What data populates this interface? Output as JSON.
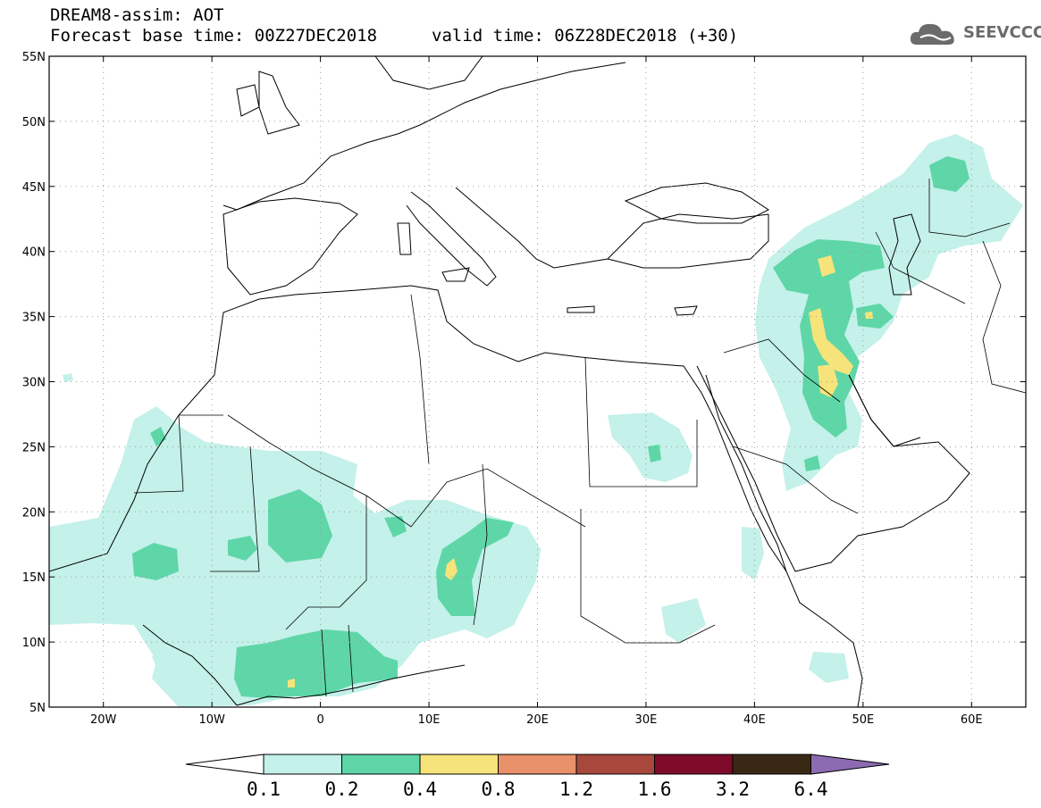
{
  "header": {
    "title": "DREAM8-assim: AOT",
    "base_time": "Forecast base time: 00Z27DEC2018",
    "valid_time": "valid time: 06Z28DEC2018 (+30)"
  },
  "logo": {
    "text": "SEEVCCC",
    "icon": "cloud-icon",
    "color": "#6b6b6b"
  },
  "map": {
    "lon_range": [
      -25,
      65
    ],
    "lat_range": [
      5,
      55
    ],
    "lon_ticks": [
      {
        "value": -20,
        "label": "20W"
      },
      {
        "value": -10,
        "label": "10W"
      },
      {
        "value": 0,
        "label": "0"
      },
      {
        "value": 10,
        "label": "10E"
      },
      {
        "value": 20,
        "label": "20E"
      },
      {
        "value": 30,
        "label": "30E"
      },
      {
        "value": 40,
        "label": "40E"
      },
      {
        "value": 50,
        "label": "50E"
      },
      {
        "value": 60,
        "label": "60E"
      }
    ],
    "lat_ticks": [
      {
        "value": 55,
        "label": "55N"
      },
      {
        "value": 50,
        "label": "50N"
      },
      {
        "value": 45,
        "label": "45N"
      },
      {
        "value": 40,
        "label": "40N"
      },
      {
        "value": 35,
        "label": "35N"
      },
      {
        "value": 30,
        "label": "30N"
      },
      {
        "value": 25,
        "label": "25N"
      },
      {
        "value": 20,
        "label": "20N"
      },
      {
        "value": 15,
        "label": "15N"
      },
      {
        "value": 10,
        "label": "10N"
      },
      {
        "value": 5,
        "label": "5N"
      }
    ]
  },
  "colorbar": {
    "labels": [
      "0.1",
      "0.2",
      "0.4",
      "0.8",
      "1.2",
      "1.6",
      "3.2",
      "6.4"
    ],
    "colors": [
      "#ffffff",
      "#c4f1ea",
      "#5fd6a8",
      "#f6e47a",
      "#e8916a",
      "#a8483c",
      "#7c0a28",
      "#3a2816",
      "#8d6bb2"
    ]
  }
}
